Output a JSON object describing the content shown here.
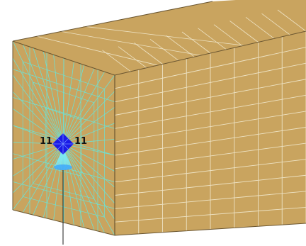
{
  "viewport": {
    "background": "#ffffff"
  },
  "model": {
    "type": "box-mesh",
    "surface_color": "#c9a45f",
    "mesh_line_color": "#eee3c4",
    "edge_color": "#6a5530",
    "refined_mesh_color": "#6ee0d2",
    "front_face": {
      "divisions": 6
    },
    "top_face": {
      "rows": 4,
      "columns": 12
    },
    "side_face": {
      "rows": 12,
      "columns": 8
    }
  },
  "node": {
    "shape": "sphere",
    "color": "#1a1ae6",
    "label_left": "11",
    "label_right": "11",
    "load_icon": "force-cone-icon"
  },
  "leader_line_color": "#1e1e1e"
}
